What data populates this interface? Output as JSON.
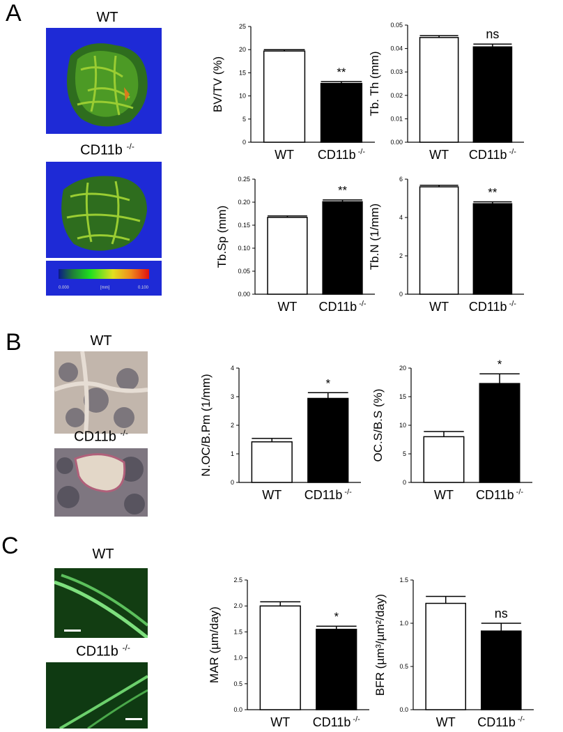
{
  "panels": [
    {
      "letter": "A",
      "images": [
        {
          "label": "WT",
          "kind": "microct"
        },
        {
          "label": "CD11b",
          "sup": "-/-",
          "kind": "microct"
        }
      ],
      "colorbar": {
        "min": "0.000",
        "unit": "[mm]",
        "max": "0.100"
      }
    },
    {
      "letter": "B",
      "images": [
        {
          "label": "WT",
          "kind": "trap"
        },
        {
          "label": "CD11b",
          "sup": "-/-",
          "kind": "trap"
        }
      ]
    },
    {
      "letter": "C",
      "images": [
        {
          "label": "WT",
          "kind": "fluor"
        },
        {
          "label": "CD11b",
          "sup": "-/-",
          "kind": "fluor"
        }
      ]
    }
  ],
  "chart_data": [
    {
      "type": "bar",
      "panel": "A",
      "ylabel": "BV/TV (%)",
      "categories": [
        "WT",
        "CD11b"
      ],
      "sup": "-/-",
      "values": [
        19.7,
        12.7
      ],
      "errors": [
        0.3,
        0.4
      ],
      "ylim": [
        0,
        25
      ],
      "yticks": [
        "0",
        "5",
        "10",
        "15",
        "20",
        "25"
      ],
      "annotation": "**"
    },
    {
      "type": "bar",
      "panel": "A",
      "ylabel": "Tb. Th (mm)",
      "categories": [
        "WT",
        "CD11b"
      ],
      "sup": "-/-",
      "values": [
        0.0447,
        0.0407
      ],
      "errors": [
        0.0008,
        0.0012
      ],
      "ylim": [
        0,
        0.05
      ],
      "yticks": [
        "0.00",
        "0.01",
        "0.02",
        "0.03",
        "0.04",
        "0.05"
      ],
      "annotation": "ns"
    },
    {
      "type": "bar",
      "panel": "A",
      "ylabel": "Tb.Sp (mm)",
      "categories": [
        "WT",
        "CD11b"
      ],
      "sup": "-/-",
      "values": [
        0.167,
        0.201
      ],
      "errors": [
        0.003,
        0.004
      ],
      "ylim": [
        0,
        0.25
      ],
      "yticks": [
        "0.00",
        "0.05",
        "0.10",
        "0.15",
        "0.20",
        "0.25"
      ],
      "annotation": "**"
    },
    {
      "type": "bar",
      "panel": "A",
      "ylabel": "Tb.N (1/mm)",
      "categories": [
        "WT",
        "CD11b"
      ],
      "sup": "-/-",
      "values": [
        5.6,
        4.72
      ],
      "errors": [
        0.08,
        0.1
      ],
      "ylim": [
        0,
        6
      ],
      "yticks": [
        "0",
        "2",
        "4",
        "6"
      ],
      "annotation": "**"
    },
    {
      "type": "bar",
      "panel": "B",
      "ylabel": "N.OC/B.Pm (1/mm)",
      "categories": [
        "WT",
        "CD11b"
      ],
      "sup": "-/-",
      "values": [
        1.42,
        2.94
      ],
      "errors": [
        0.12,
        0.2
      ],
      "ylim": [
        0,
        4
      ],
      "yticks": [
        "0",
        "1",
        "2",
        "3",
        "4"
      ],
      "annotation": "*"
    },
    {
      "type": "bar",
      "panel": "B",
      "ylabel": "OC.S/B.S (%)",
      "categories": [
        "WT",
        "CD11b"
      ],
      "sup": "-/-",
      "values": [
        8.0,
        17.3
      ],
      "errors": [
        0.9,
        1.7
      ],
      "ylim": [
        0,
        20
      ],
      "yticks": [
        "0",
        "5",
        "10",
        "15",
        "20"
      ],
      "annotation": "*"
    },
    {
      "type": "bar",
      "panel": "C",
      "ylabel": "MAR (µm/day)",
      "categories": [
        "WT",
        "CD11b"
      ],
      "sup": "-/-",
      "values": [
        2.0,
        1.55
      ],
      "errors": [
        0.08,
        0.06
      ],
      "ylim": [
        0,
        2.5
      ],
      "yticks": [
        "0.0",
        "0.5",
        "1.0",
        "1.5",
        "2.0",
        "2.5"
      ],
      "annotation": "*"
    },
    {
      "type": "bar",
      "panel": "C",
      "ylabel": "BFR (µm³/µm²/day)",
      "categories": [
        "WT",
        "CD11b"
      ],
      "sup": "-/-",
      "values": [
        1.23,
        0.91
      ],
      "errors": [
        0.08,
        0.09
      ],
      "ylim": [
        0,
        1.5
      ],
      "yticks": [
        "0.0",
        "0.5",
        "1.0",
        "1.5"
      ],
      "annotation": "ns"
    }
  ],
  "colors": {
    "bar_ctrl": "#ffffff",
    "bar_ko": "#000000",
    "microct_bg": "#1e2ad6",
    "fluor_bg": "#0f3d0f"
  }
}
